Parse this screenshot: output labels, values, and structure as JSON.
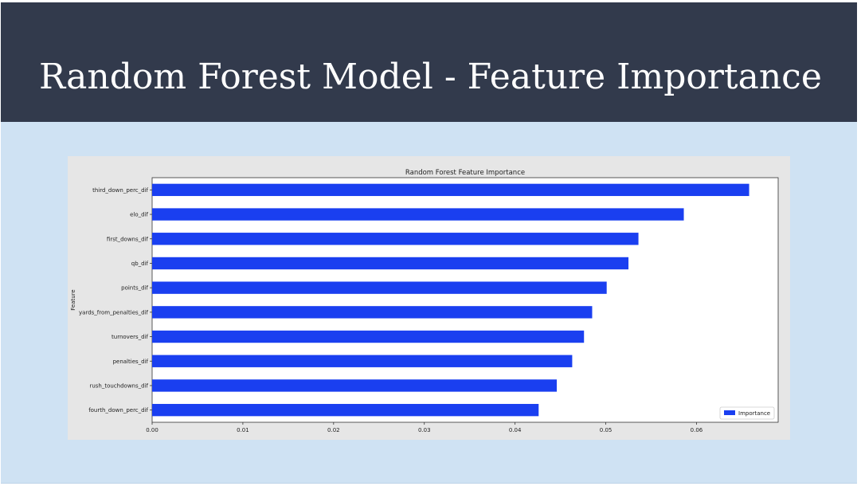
{
  "slide": {
    "title": "Random Forest Model - Feature Importance"
  },
  "colors": {
    "header_bg": "#323a4c",
    "slide_bg": "#cfe2f3",
    "bar": "#1a3ff0",
    "figure_bg": "#e6e6e6",
    "plot_bg": "#ffffff"
  },
  "chart_data": {
    "type": "bar",
    "orientation": "horizontal",
    "title": "Random Forest Feature Importance",
    "xlabel": "",
    "ylabel": "Feature",
    "categories": [
      "third_down_perc_dif",
      "elo_dif",
      "first_downs_dif",
      "qb_dif",
      "points_dif",
      "yards_from_penalties_dif",
      "turnovers_dif",
      "penalties_dif",
      "rush_touchdowns_dif",
      "fourth_down_perc_dif"
    ],
    "series": [
      {
        "name": "Importance",
        "values": [
          0.0658,
          0.0586,
          0.0536,
          0.0525,
          0.0501,
          0.0485,
          0.0476,
          0.0463,
          0.0446,
          0.0426
        ]
      }
    ],
    "x_ticks": [
      "0.00",
      "0.01",
      "0.02",
      "0.03",
      "0.04",
      "0.05",
      "0.06"
    ],
    "x_tick_values": [
      0,
      0.01,
      0.02,
      0.03,
      0.04,
      0.05,
      0.06
    ],
    "xlim": [
      0,
      0.069
    ],
    "grid": false,
    "legend": {
      "placement": "bottom-right",
      "entries": [
        "Importance"
      ]
    }
  }
}
